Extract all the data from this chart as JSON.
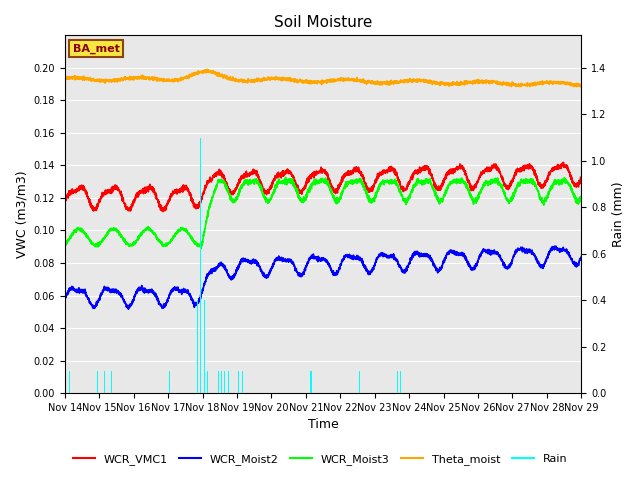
{
  "title": "Soil Moisture",
  "xlabel": "Time",
  "ylabel_left": "VWC (m3/m3)",
  "ylabel_right": "Rain (mm)",
  "ylim_left": [
    0,
    0.22
  ],
  "ylim_right": [
    0,
    1.54
  ],
  "yticks_left": [
    0.0,
    0.02,
    0.04,
    0.06,
    0.08,
    0.1,
    0.12,
    0.14,
    0.16,
    0.18,
    0.2
  ],
  "yticks_right": [
    0.0,
    0.2,
    0.4,
    0.6,
    0.8,
    1.0,
    1.2,
    1.4
  ],
  "bg_color": "#e8e8e8",
  "annotation_text": "BA_met",
  "wcr1_base_pre": 0.121,
  "wcr1_base_post": 0.13,
  "wcr2_base_pre": 0.06,
  "wcr2_base_post": 0.077,
  "wcr3_base_pre": 0.096,
  "wcr3_base_post": 0.126,
  "theta_base": 0.193,
  "rain_times": [
    0.15,
    0.95,
    1.15,
    1.35,
    3.05,
    3.85,
    3.95,
    4.05,
    4.15,
    4.45,
    4.55,
    4.65,
    4.75,
    5.05,
    5.15,
    7.15,
    8.55,
    9.65,
    9.75
  ],
  "rain_amounts": [
    0.095,
    0.095,
    0.095,
    0.095,
    0.095,
    0.4,
    1.1,
    0.4,
    0.095,
    0.095,
    0.095,
    0.095,
    0.095,
    0.095,
    0.095,
    0.095,
    0.095,
    0.095,
    0.095
  ],
  "transition_day": 4.05,
  "legend_entries": [
    "WCR_VMC1",
    "WCR_Moist2",
    "WCR_Moist3",
    "Theta_moist",
    "Rain"
  ],
  "legend_colors": [
    "red",
    "blue",
    "green",
    "orange",
    "cyan"
  ]
}
